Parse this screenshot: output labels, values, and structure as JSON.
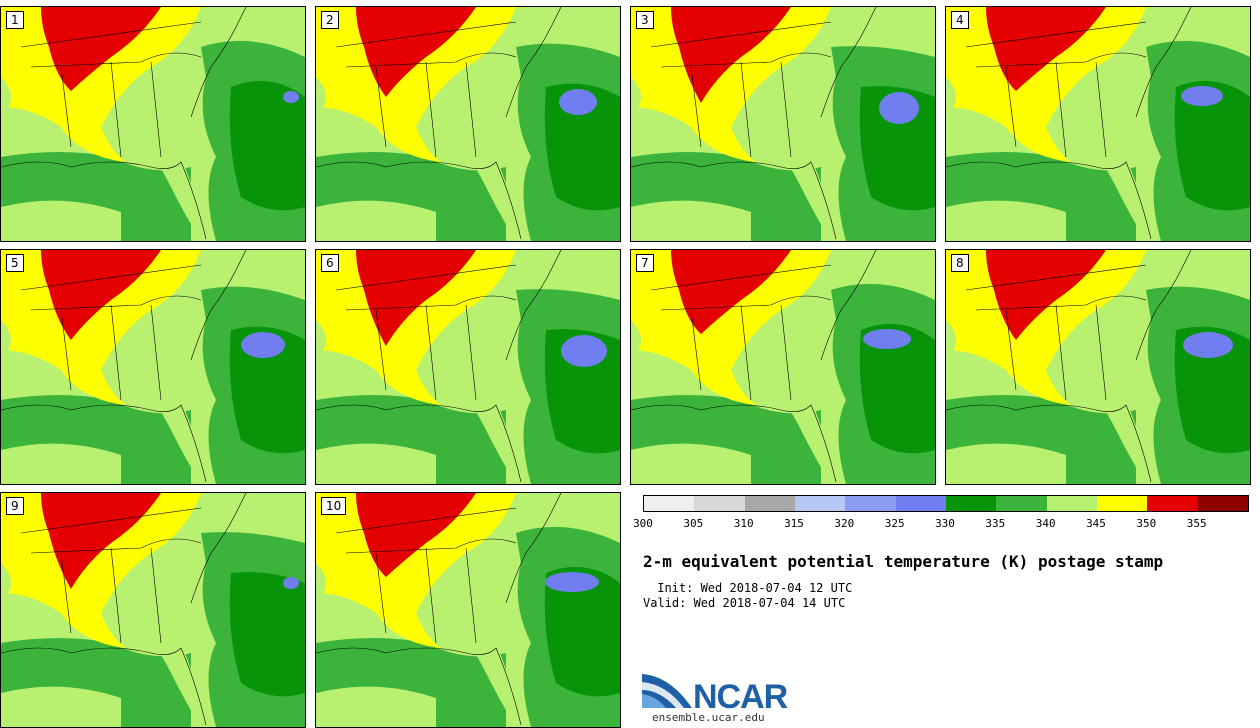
{
  "panels": [
    {
      "label": "1"
    },
    {
      "label": "2"
    },
    {
      "label": "3"
    },
    {
      "label": "4"
    },
    {
      "label": "5"
    },
    {
      "label": "6"
    },
    {
      "label": "7"
    },
    {
      "label": "8"
    },
    {
      "label": "9"
    },
    {
      "label": "10"
    }
  ],
  "colorbar": {
    "colors": [
      "#efefef",
      "#d8d8d8",
      "#a8a8a8",
      "#b6c8f4",
      "#8c9cf0",
      "#707ef0",
      "#089408",
      "#3cb43c",
      "#b8f070",
      "#ffff00",
      "#e40000",
      "#8c0000"
    ],
    "ticks": [
      "300",
      "305",
      "310",
      "315",
      "320",
      "325",
      "330",
      "335",
      "340",
      "345",
      "350",
      "355"
    ]
  },
  "title": "2-m equivalent potential temperature (K) postage stamp",
  "init": " Init: Wed 2018-07-04 12 UTC",
  "valid": "Valid: Wed 2018-07-04 14 UTC",
  "logo": {
    "text": "NCAR",
    "url": "ensemble.ucar.edu"
  }
}
